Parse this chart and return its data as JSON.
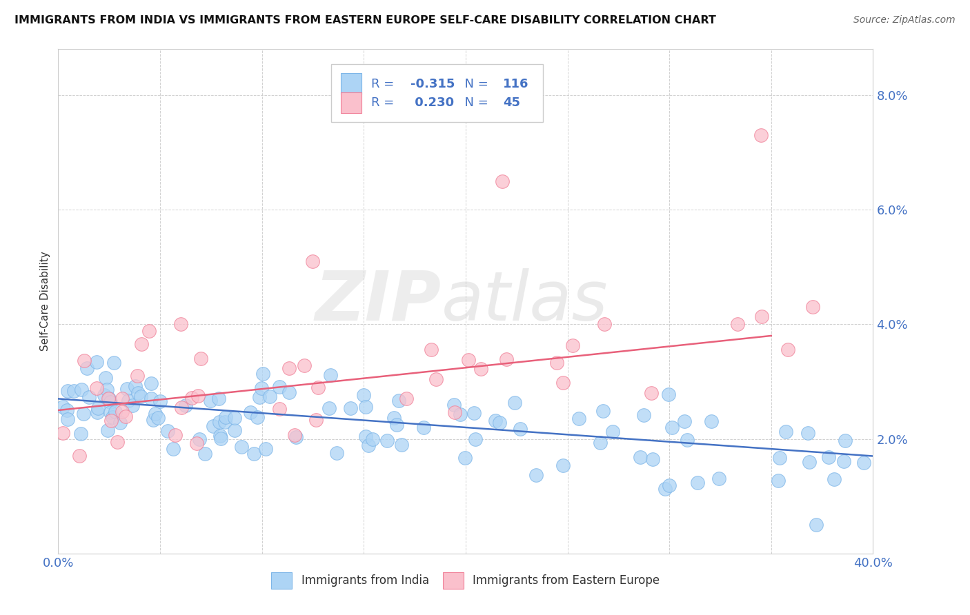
{
  "title": "IMMIGRANTS FROM INDIA VS IMMIGRANTS FROM EASTERN EUROPE SELF-CARE DISABILITY CORRELATION CHART",
  "source": "Source: ZipAtlas.com",
  "ylabel": "Self-Care Disability",
  "xlim": [
    0.0,
    0.4
  ],
  "ylim": [
    0.0,
    0.088
  ],
  "india_color": "#ADD4F5",
  "india_edge_color": "#7EB6E8",
  "eastern_europe_color": "#FAC0CC",
  "eastern_europe_edge_color": "#F08098",
  "india_label": "Immigrants from India",
  "eastern_europe_label": "Immigrants from Eastern Europe",
  "india_R": -0.315,
  "india_N": 116,
  "eastern_europe_R": 0.23,
  "eastern_europe_N": 45,
  "trend_india_color": "#4472C4",
  "trend_eastern_color": "#E8607A",
  "watermark_zip": "ZIP",
  "watermark_atlas": "atlas",
  "background_color": "#FFFFFF",
  "grid_color": "#CCCCCC",
  "title_color": "#111111",
  "axis_label_color": "#4472C4",
  "legend_text_color": "#4472C4",
  "india_trend_start_y": 0.027,
  "india_trend_end_y": 0.017,
  "eastern_trend_start_y": 0.025,
  "eastern_trend_end_y": 0.038
}
